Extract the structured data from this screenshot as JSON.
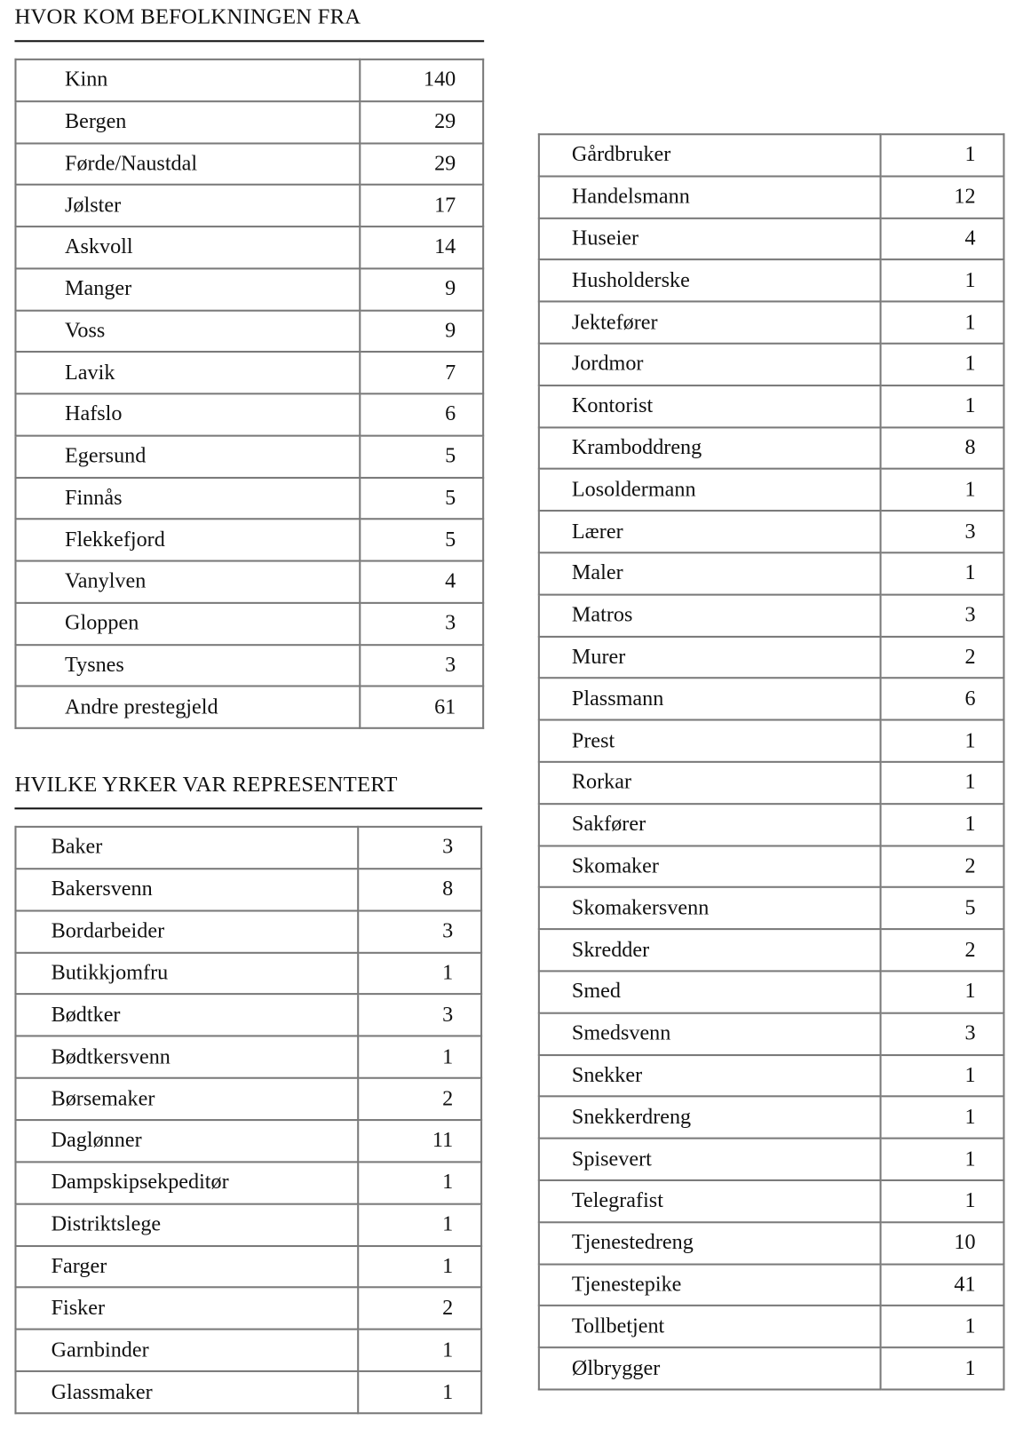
{
  "sections": {
    "origin": {
      "title": "HVOR KOM BEFOLKNINGEN FRA",
      "rows": [
        {
          "label": "Kinn",
          "value": "140"
        },
        {
          "label": "Bergen",
          "value": "29"
        },
        {
          "label": "Førde/Naustdal",
          "value": "29"
        },
        {
          "label": "Jølster",
          "value": "17"
        },
        {
          "label": "Askvoll",
          "value": "14"
        },
        {
          "label": "Manger",
          "value": "9"
        },
        {
          "label": "Voss",
          "value": "9"
        },
        {
          "label": "Lavik",
          "value": "7"
        },
        {
          "label": "Hafslo",
          "value": "6"
        },
        {
          "label": "Egersund",
          "value": "5"
        },
        {
          "label": "Finnås",
          "value": "5"
        },
        {
          "label": "Flekkefjord",
          "value": "5"
        },
        {
          "label": "Vanylven",
          "value": "4"
        },
        {
          "label": "Gloppen",
          "value": "3"
        },
        {
          "label": "Tysnes",
          "value": "3"
        },
        {
          "label": "Andre prestegjeld",
          "value": "61"
        }
      ]
    },
    "occupations": {
      "title": "HVILKE YRKER VAR REPRESENTERT",
      "rows_left": [
        {
          "label": "Baker",
          "value": "3"
        },
        {
          "label": "Bakersvenn",
          "value": "8"
        },
        {
          "label": "Bordarbeider",
          "value": "3"
        },
        {
          "label": "Butikkjomfru",
          "value": "1"
        },
        {
          "label": "Bødtker",
          "value": "3"
        },
        {
          "label": "Bødtkersvenn",
          "value": "1"
        },
        {
          "label": "Børsemaker",
          "value": "2"
        },
        {
          "label": "Daglønner",
          "value": "11"
        },
        {
          "label": "Dampskipsekpeditør",
          "value": "1"
        },
        {
          "label": "Distriktslege",
          "value": "1"
        },
        {
          "label": "Farger",
          "value": "1"
        },
        {
          "label": "Fisker",
          "value": "2"
        },
        {
          "label": "Garnbinder",
          "value": "1"
        },
        {
          "label": "Glassmaker",
          "value": "1"
        }
      ],
      "rows_right": [
        {
          "label": "Gårdbruker",
          "value": "1"
        },
        {
          "label": "Handelsmann",
          "value": "12"
        },
        {
          "label": "Huseier",
          "value": "4"
        },
        {
          "label": "Husholderske",
          "value": "1"
        },
        {
          "label": "Jektefører",
          "value": "1"
        },
        {
          "label": "Jordmor",
          "value": "1"
        },
        {
          "label": "Kontorist",
          "value": "1"
        },
        {
          "label": "Kramboddreng",
          "value": "8"
        },
        {
          "label": "Losoldermann",
          "value": "1"
        },
        {
          "label": "Lærer",
          "value": "3"
        },
        {
          "label": "Maler",
          "value": "1"
        },
        {
          "label": "Matros",
          "value": "3"
        },
        {
          "label": "Murer",
          "value": "2"
        },
        {
          "label": "Plassmann",
          "value": "6"
        },
        {
          "label": "Prest",
          "value": "1"
        },
        {
          "label": "Rorkar",
          "value": "1"
        },
        {
          "label": "Sakfører",
          "value": "1"
        },
        {
          "label": "Skomaker",
          "value": "2"
        },
        {
          "label": "Skomakersvenn",
          "value": "5"
        },
        {
          "label": "Skredder",
          "value": "2"
        },
        {
          "label": "Smed",
          "value": "1"
        },
        {
          "label": "Smedsvenn",
          "value": "3"
        },
        {
          "label": "Snekker",
          "value": "1"
        },
        {
          "label": "Snekkerdreng",
          "value": "1"
        },
        {
          "label": "Spisevert",
          "value": "1"
        },
        {
          "label": "Telegrafist",
          "value": "1"
        },
        {
          "label": "Tjenestedreng",
          "value": "10"
        },
        {
          "label": "Tjenestepike",
          "value": "41"
        },
        {
          "label": "Tollbetjent",
          "value": "1"
        },
        {
          "label": "Ølbrygger",
          "value": "1"
        }
      ]
    }
  }
}
